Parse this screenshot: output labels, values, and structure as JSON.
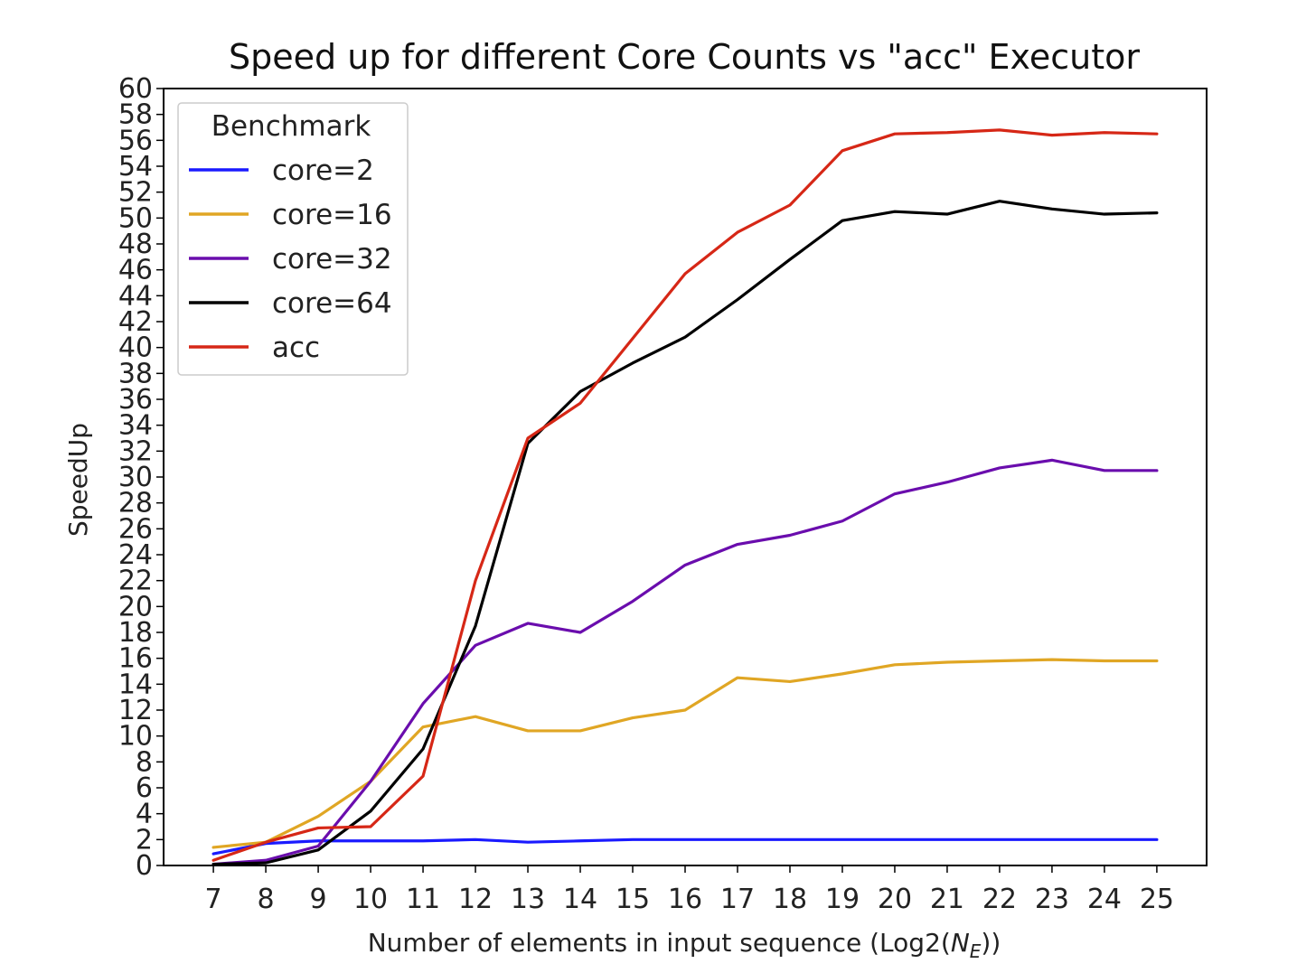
{
  "chart_data": {
    "type": "line",
    "title": "Speed up for different Core Counts vs \"acc\" Executor",
    "xlabel": "Number of elements in input sequence (Log2(N_E))",
    "xlabel_parts": {
      "prefix": "Number of elements in input sequence (Log2(",
      "var": "N",
      "sub": "E",
      "suffix": "))"
    },
    "ylabel": "SpeedUp",
    "x": [
      7,
      8,
      9,
      10,
      11,
      12,
      13,
      14,
      15,
      16,
      17,
      18,
      19,
      20,
      21,
      22,
      23,
      24,
      25
    ],
    "xlim": [
      6.05,
      25.95
    ],
    "ylim": [
      0,
      60
    ],
    "yticks": [
      0,
      2,
      4,
      6,
      8,
      10,
      12,
      14,
      16,
      18,
      20,
      22,
      24,
      26,
      28,
      30,
      32,
      34,
      36,
      38,
      40,
      42,
      44,
      46,
      48,
      50,
      52,
      54,
      56,
      58,
      60
    ],
    "grid": false,
    "legend": {
      "title": "Benchmark",
      "position": "upper-left"
    },
    "series": [
      {
        "name": "core=2",
        "color": "#1a1aff",
        "values": [
          0.9,
          1.7,
          1.9,
          1.9,
          1.9,
          2.0,
          1.8,
          1.9,
          2.0,
          2.0,
          2.0,
          2.0,
          2.0,
          2.0,
          2.0,
          2.0,
          2.0,
          2.0,
          2.0
        ]
      },
      {
        "name": "core=16",
        "color": "#e0a624",
        "values": [
          1.4,
          1.8,
          3.8,
          6.5,
          10.7,
          11.5,
          10.4,
          10.4,
          11.4,
          12.0,
          14.5,
          14.2,
          14.8,
          15.5,
          15.7,
          15.8,
          15.9,
          15.8,
          15.8
        ]
      },
      {
        "name": "core=32",
        "color": "#6a0dad",
        "values": [
          0.1,
          0.4,
          1.5,
          6.5,
          12.5,
          17.0,
          18.7,
          18.0,
          20.4,
          23.2,
          24.8,
          25.5,
          26.6,
          28.7,
          29.6,
          30.7,
          31.3,
          30.5,
          30.5
        ]
      },
      {
        "name": "core=64",
        "color": "#000000",
        "values": [
          0.1,
          0.2,
          1.2,
          4.2,
          9.0,
          18.5,
          32.6,
          36.6,
          38.8,
          40.8,
          43.7,
          46.8,
          49.8,
          50.5,
          50.3,
          51.3,
          50.7,
          50.3,
          50.4
        ]
      },
      {
        "name": "acc",
        "color": "#d62716",
        "values": [
          0.4,
          1.8,
          2.9,
          3.0,
          6.9,
          22.0,
          33.0,
          35.7,
          40.7,
          45.7,
          48.9,
          51.0,
          55.2,
          56.5,
          56.6,
          56.8,
          56.4,
          56.6,
          56.5
        ]
      }
    ]
  }
}
